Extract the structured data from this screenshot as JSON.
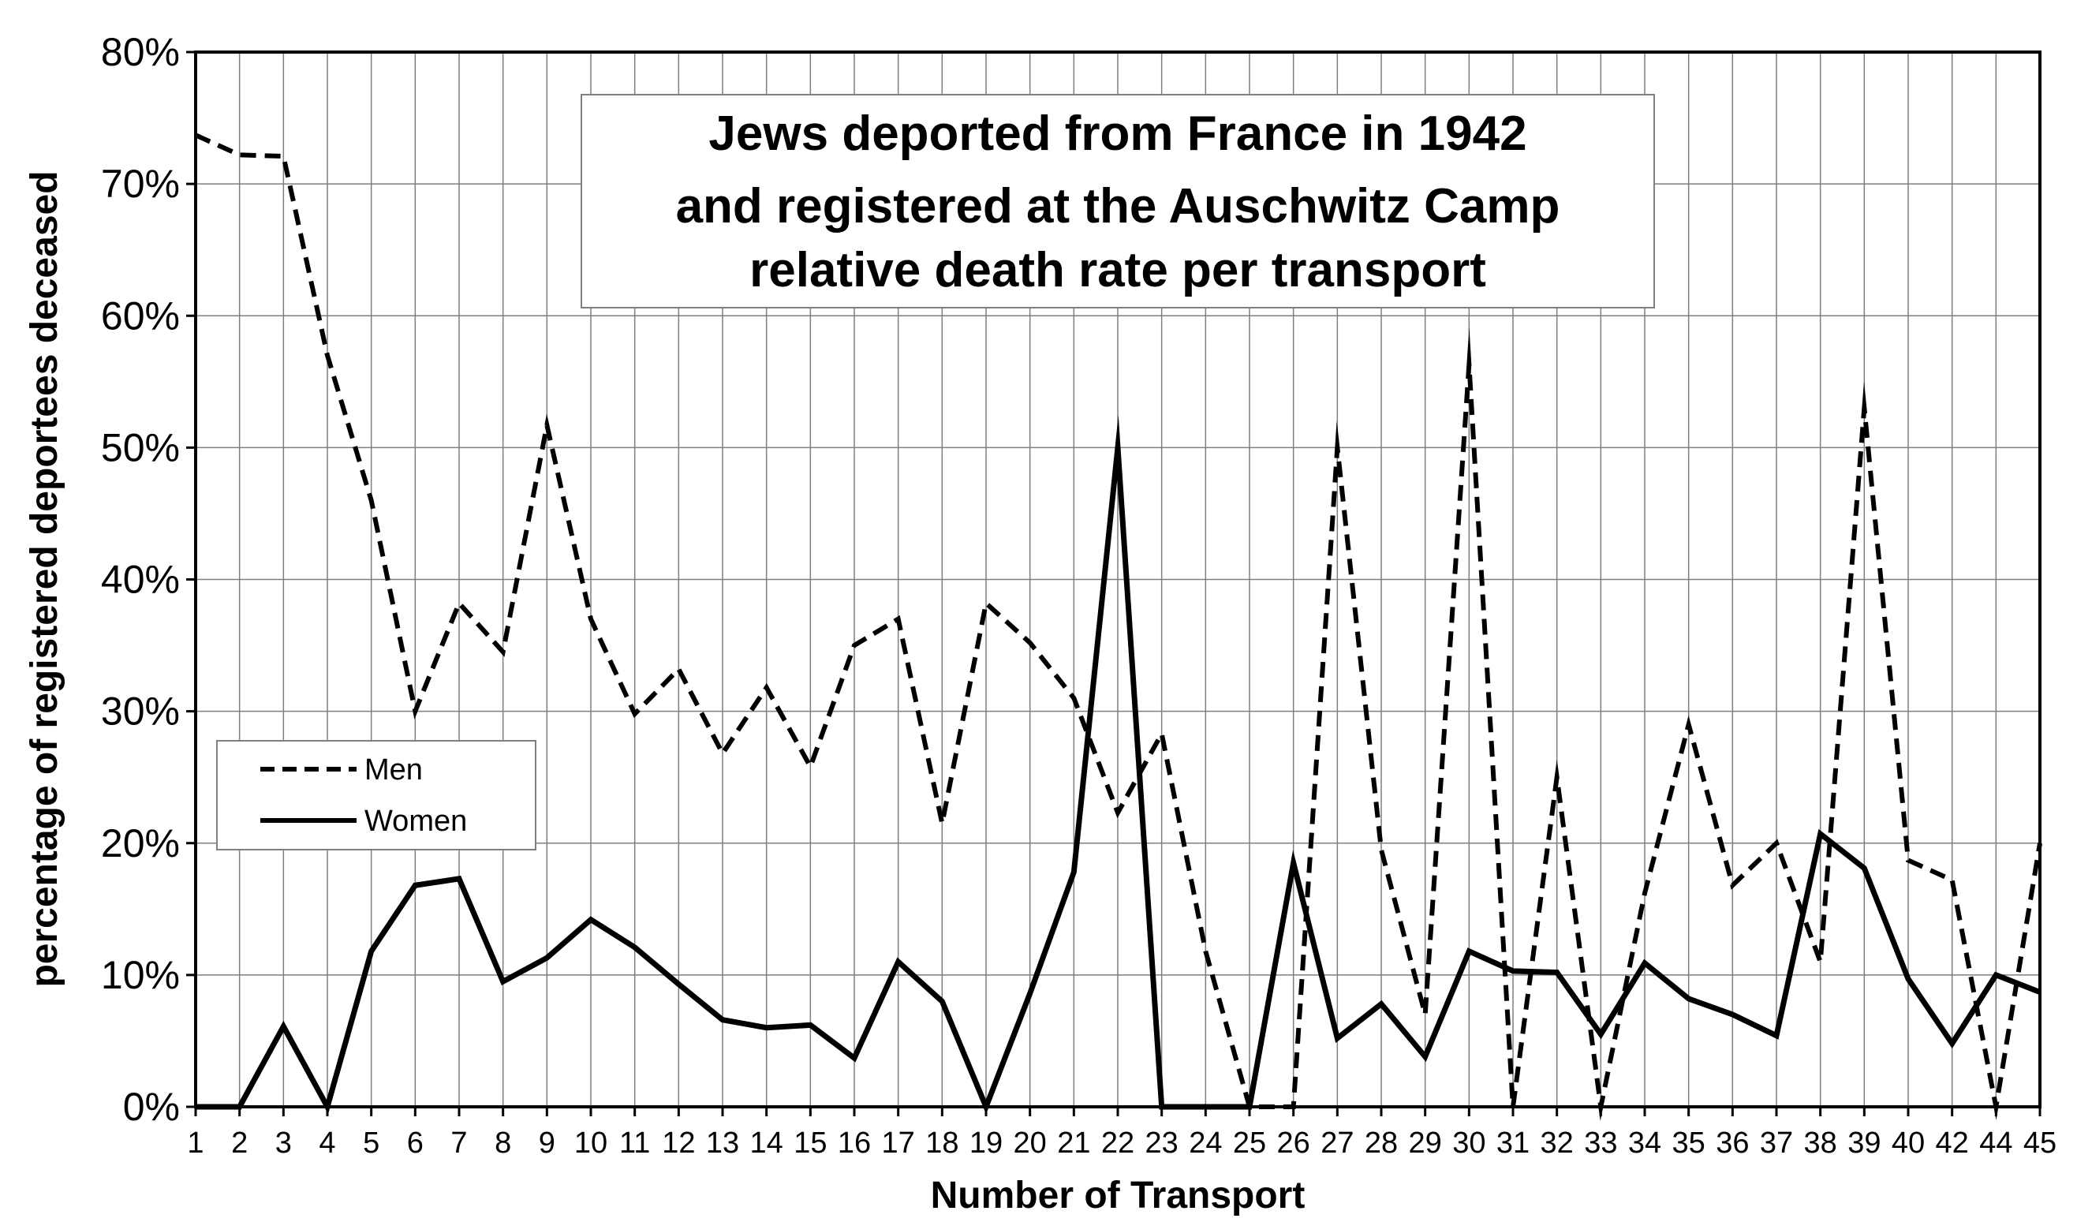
{
  "chart_data": {
    "type": "line",
    "title": [
      "Jews deported from France in 1942",
      "and registered at the Auschwitz Camp",
      "relative death rate per transport"
    ],
    "xlabel": "Number of Transport",
    "ylabel": "percentage of registered deportees deceased",
    "ylim": [
      0,
      80
    ],
    "yticks": [
      "0%",
      "10%",
      "20%",
      "30%",
      "40%",
      "50%",
      "60%",
      "70%",
      "80%"
    ],
    "categories": [
      "1",
      "2",
      "3",
      "4",
      "5",
      "6",
      "7",
      "8",
      "9",
      "10",
      "11",
      "12",
      "13",
      "14",
      "15",
      "16",
      "17",
      "18",
      "19",
      "20",
      "21",
      "22",
      "23",
      "24",
      "25",
      "26",
      "27",
      "28",
      "29",
      "30",
      "31",
      "32",
      "33",
      "34",
      "35",
      "36",
      "37",
      "38",
      "39",
      "40",
      "42",
      "44",
      "45"
    ],
    "grid": true,
    "legend": "left",
    "series": [
      {
        "name": "Men",
        "style": "dashed",
        "color": "#000000",
        "values": [
          73.7,
          72.2,
          72.1,
          57,
          46,
          30,
          38.2,
          34.5,
          51.7,
          37,
          29.8,
          33.2,
          26.8,
          31.8,
          25.8,
          35,
          37,
          21.5,
          38.2,
          35.2,
          31,
          22.3,
          28.3,
          11.8,
          0,
          0,
          50,
          19.5,
          7,
          56.3,
          0,
          25,
          0,
          16.2,
          29,
          16.8,
          20,
          11,
          53,
          18.7,
          17.2,
          0,
          20
        ]
      },
      {
        "name": "Women",
        "style": "solid",
        "color": "#000000",
        "values": [
          0,
          0,
          6.1,
          0,
          11.8,
          16.8,
          17.3,
          9.5,
          11.3,
          14.2,
          12.1,
          9.3,
          6.6,
          6,
          6.2,
          3.7,
          11,
          8,
          0,
          8.6,
          17.8,
          50,
          0,
          0,
          0,
          18.5,
          5.2,
          7.8,
          3.8,
          11.8,
          10.3,
          10.2,
          5.5,
          10.9,
          8.2,
          7,
          5.4,
          20.7,
          18.1,
          9.7,
          4.8,
          10,
          8.7
        ]
      }
    ]
  }
}
